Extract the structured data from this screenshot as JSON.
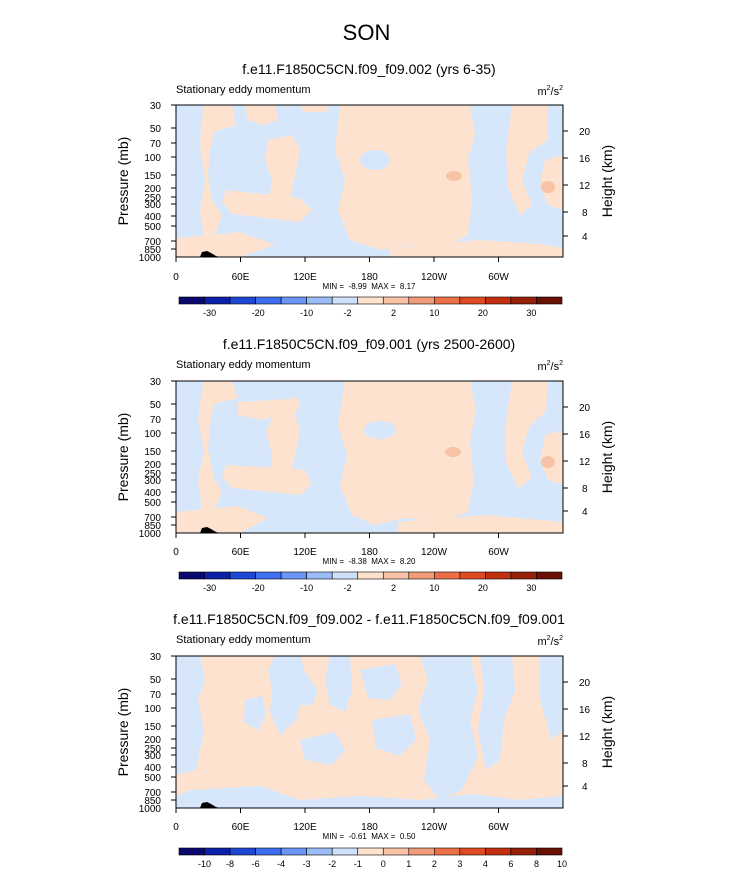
{
  "main_title": "SON",
  "chart_data": [
    {
      "type": "heatmap",
      "title": "f.e11.F1850C5CN.f09_f09.002 (yrs 6-35)",
      "subtitle_left": "Stationary eddy momentum",
      "units": "m2/s2",
      "ylabel": "Pressure (mb)",
      "ylabel_right": "Height (km)",
      "xlim": [
        0,
        360
      ],
      "ylim_mb": [
        1000,
        30
      ],
      "x_ticks": [
        "0",
        "60E",
        "120E",
        "180",
        "120W",
        "60W"
      ],
      "y_ticks": [
        "30",
        "50",
        "70",
        "100",
        "150",
        "200",
        "250",
        "300",
        "400",
        "500",
        "700",
        "850",
        "1000"
      ],
      "y_ticks_right": [
        "20",
        "16",
        "12",
        "8",
        "4"
      ],
      "stats": "MIN =  -8.99  MAX =  8.17",
      "min": -8.99,
      "max": 8.17,
      "colorbar_labels": [
        "-30",
        "-20",
        "-10",
        "-2",
        "2",
        "10",
        "20",
        "30"
      ],
      "dominant_fields": [
        "-2 to 0 (light blue)",
        "0 to 2 (light peach)"
      ],
      "features": "Light blue background with positive (peach) regions near 180 and scattered columns; local maxima near 130W at 150 mb and 20W at 150 mb"
    },
    {
      "type": "heatmap",
      "title": "f.e11.F1850C5CN.f09_f09.001 (yrs 2500-2600)",
      "subtitle_left": "Stationary eddy momentum",
      "units": "m2/s2",
      "ylabel": "Pressure (mb)",
      "ylabel_right": "Height (km)",
      "xlim": [
        0,
        360
      ],
      "ylim_mb": [
        1000,
        30
      ],
      "x_ticks": [
        "0",
        "60E",
        "120E",
        "180",
        "120W",
        "60W"
      ],
      "y_ticks": [
        "30",
        "50",
        "70",
        "100",
        "150",
        "200",
        "250",
        "300",
        "400",
        "500",
        "700",
        "850",
        "1000"
      ],
      "y_ticks_right": [
        "20",
        "16",
        "12",
        "8",
        "4"
      ],
      "stats": "MIN =  -8.38  MAX =  8.20",
      "min": -8.38,
      "max": 8.2,
      "colorbar_labels": [
        "-30",
        "-20",
        "-10",
        "-2",
        "2",
        "10",
        "20",
        "30"
      ]
    },
    {
      "type": "heatmap",
      "title": "f.e11.F1850C5CN.f09_f09.002 - f.e11.F1850C5CN.f09_f09.001",
      "subtitle_left": "Stationary eddy momentum",
      "units": "m2/s2",
      "ylabel": "Pressure (mb)",
      "ylabel_right": "Height (km)",
      "xlim": [
        0,
        360
      ],
      "ylim_mb": [
        1000,
        30
      ],
      "x_ticks": [
        "0",
        "60E",
        "120E",
        "180",
        "120W",
        "60W"
      ],
      "y_ticks": [
        "30",
        "50",
        "70",
        "100",
        "150",
        "200",
        "250",
        "300",
        "400",
        "500",
        "700",
        "850",
        "1000"
      ],
      "y_ticks_right": [
        "20",
        "16",
        "12",
        "8",
        "4"
      ],
      "stats": "MIN =  -0.61  MAX =  0.50",
      "min": -0.61,
      "max": 0.5,
      "colorbar_labels": [
        "-10",
        "-8",
        "-6",
        "-4",
        "-3",
        "-2",
        "-1",
        "0",
        "1",
        "2",
        "3",
        "4",
        "6",
        "8",
        "10"
      ]
    }
  ],
  "colors": {
    "colorbar": [
      "#08086e",
      "#0c1fa8",
      "#1f47d6",
      "#3d6ff0",
      "#6b96f5",
      "#9cbcf7",
      "#cfe1fa",
      "#fde1cc",
      "#f8c3a6",
      "#f39c79",
      "#ec7047",
      "#e04a22",
      "#c0300e",
      "#942008",
      "#6b1004"
    ],
    "neg_light": "#d6e6fb",
    "pos_light": "#fde3cf",
    "pos_mid": "#f7c2a5",
    "terrain": "#000000"
  }
}
